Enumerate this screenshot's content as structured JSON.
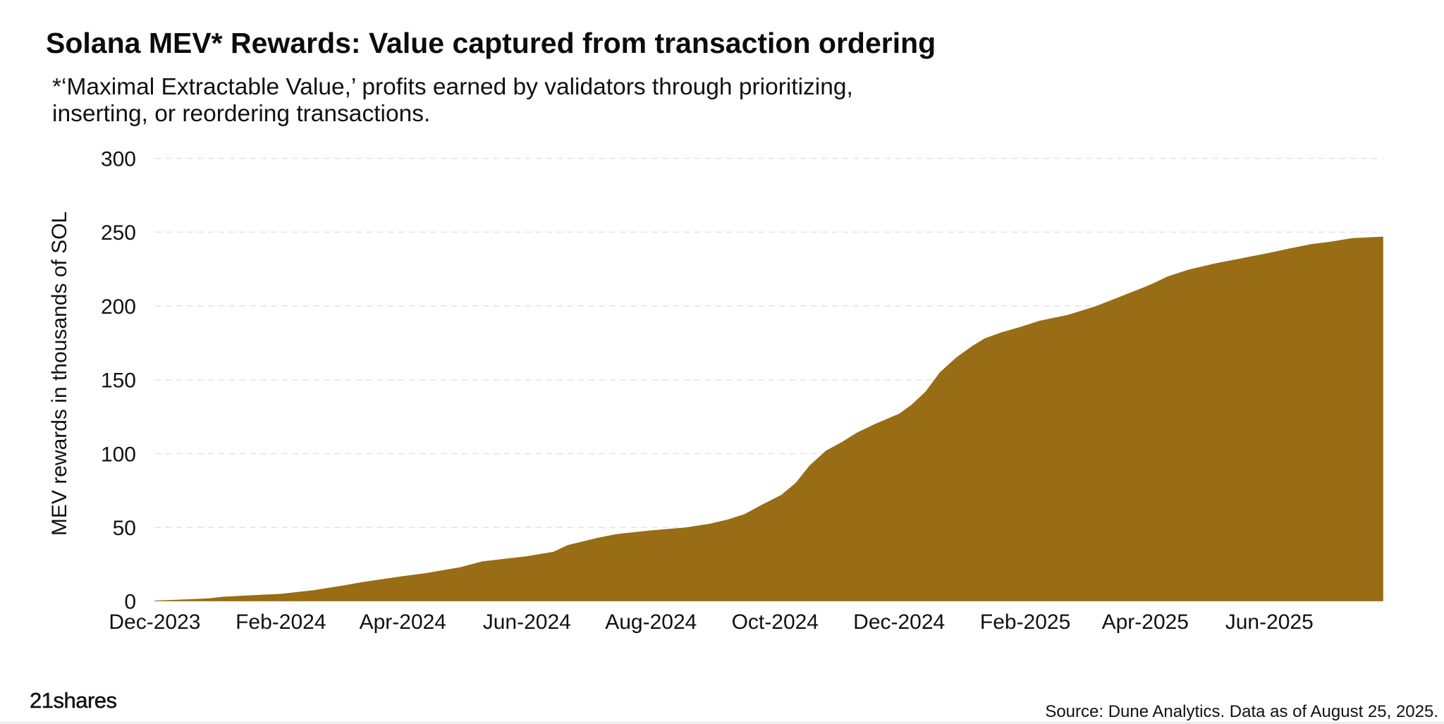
{
  "chart_data": {
    "type": "area",
    "title": "Solana MEV* Rewards: Value captured from transaction ordering",
    "subtitle_lines": [
      "*‘Maximal Extractable Value,’ profits earned by validators through prioritizing,",
      "inserting, or reordering transactions."
    ],
    "ylabel": "MEV rewards in thousands of SOL",
    "ylim": [
      0,
      300
    ],
    "yticks": [
      0,
      50,
      100,
      150,
      200,
      250,
      300
    ],
    "xlim": [
      [
        2023,
        12,
        1
      ],
      [
        2025,
        7,
        27
      ]
    ],
    "xticks": [
      {
        "year": 2023,
        "month": 12,
        "label": "Dec-2023"
      },
      {
        "year": 2024,
        "month": 2,
        "label": "Feb-2024"
      },
      {
        "year": 2024,
        "month": 4,
        "label": "Apr-2024"
      },
      {
        "year": 2024,
        "month": 6,
        "label": "Jun-2024"
      },
      {
        "year": 2024,
        "month": 8,
        "label": "Aug-2024"
      },
      {
        "year": 2024,
        "month": 10,
        "label": "Oct-2024"
      },
      {
        "year": 2024,
        "month": 12,
        "label": "Dec-2024"
      },
      {
        "year": 2025,
        "month": 2,
        "label": "Feb-2025"
      },
      {
        "year": 2025,
        "month": 4,
        "label": "Apr-2025"
      },
      {
        "year": 2025,
        "month": 6,
        "label": "Jun-2025"
      }
    ],
    "grid": true,
    "series": [
      {
        "color": "#986D15",
        "points": [
          [
            2023,
            12,
            1,
            0.5
          ],
          [
            2023,
            12,
            15,
            1.2
          ],
          [
            2023,
            12,
            28,
            2.0
          ],
          [
            2024,
            1,
            3,
            3.0
          ],
          [
            2024,
            1,
            14,
            3.8
          ],
          [
            2024,
            2,
            1,
            5.0
          ],
          [
            2024,
            2,
            17,
            7.5
          ],
          [
            2024,
            3,
            2,
            10.5
          ],
          [
            2024,
            3,
            12,
            13.0
          ],
          [
            2024,
            4,
            1,
            17.0
          ],
          [
            2024,
            4,
            12,
            19.0
          ],
          [
            2024,
            4,
            29,
            23.0
          ],
          [
            2024,
            5,
            10,
            27.0
          ],
          [
            2024,
            6,
            1,
            30.5
          ],
          [
            2024,
            6,
            14,
            33.5
          ],
          [
            2024,
            6,
            21,
            38.0
          ],
          [
            2024,
            7,
            6,
            43.0
          ],
          [
            2024,
            7,
            15,
            45.5
          ],
          [
            2024,
            8,
            1,
            48.0
          ],
          [
            2024,
            8,
            18,
            50.0
          ],
          [
            2024,
            8,
            30,
            52.5
          ],
          [
            2024,
            9,
            8,
            55.5
          ],
          [
            2024,
            9,
            16,
            59.0
          ],
          [
            2024,
            9,
            24,
            65.0
          ],
          [
            2024,
            10,
            4,
            72.0
          ],
          [
            2024,
            10,
            11,
            80.0
          ],
          [
            2024,
            10,
            18,
            92.0
          ],
          [
            2024,
            10,
            26,
            102.0
          ],
          [
            2024,
            11,
            3,
            108.0
          ],
          [
            2024,
            11,
            10,
            114.0
          ],
          [
            2024,
            11,
            19,
            120.0
          ],
          [
            2024,
            12,
            1,
            127.0
          ],
          [
            2024,
            12,
            7,
            133.0
          ],
          [
            2024,
            12,
            14,
            142.0
          ],
          [
            2024,
            12,
            21,
            155.0
          ],
          [
            2024,
            12,
            29,
            165.0
          ],
          [
            2025,
            1,
            6,
            173.0
          ],
          [
            2025,
            1,
            12,
            178.0
          ],
          [
            2025,
            1,
            20,
            182.0
          ],
          [
            2025,
            1,
            30,
            186.0
          ],
          [
            2025,
            2,
            8,
            190.0
          ],
          [
            2025,
            2,
            22,
            194.0
          ],
          [
            2025,
            3,
            8,
            200.0
          ],
          [
            2025,
            3,
            19,
            206.0
          ],
          [
            2025,
            4,
            1,
            213.0
          ],
          [
            2025,
            4,
            6,
            216.0
          ],
          [
            2025,
            4,
            12,
            220.0
          ],
          [
            2025,
            4,
            22,
            224.5
          ],
          [
            2025,
            5,
            6,
            229.0
          ],
          [
            2025,
            5,
            19,
            232.5
          ],
          [
            2025,
            6,
            1,
            236.0
          ],
          [
            2025,
            6,
            11,
            239.0
          ],
          [
            2025,
            6,
            22,
            242.0
          ],
          [
            2025,
            7,
            1,
            243.5
          ],
          [
            2025,
            7,
            12,
            246.0
          ],
          [
            2025,
            7,
            27,
            247.0
          ]
        ]
      }
    ],
    "source": "Source: Dune Analytics. Data as of August 25, 2025."
  },
  "branding": {
    "logo_text": "21shares"
  },
  "colors": {
    "area": "#986D15",
    "grid": "#E4E4E4",
    "text": "#111111",
    "background": "#FFFFFF"
  }
}
